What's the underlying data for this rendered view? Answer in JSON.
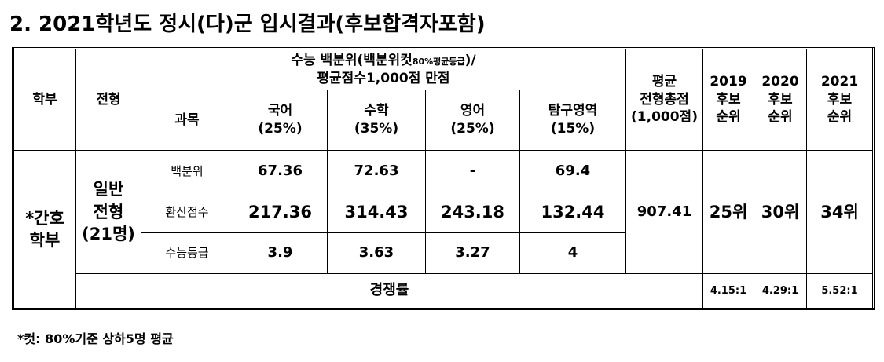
{
  "title": "2. 2021학년도 정시(다)군 입시결과(후보합격자포함)",
  "table": {
    "header": {
      "dept": "학부",
      "track": "전형",
      "group": [
        "수능 백분위(백분위컷",
        "80%평균등급",
        ")/"
      ],
      "group_line2": "평균점수1,000점 만점",
      "subject": "과목",
      "subjects": [
        [
          "국어",
          "(25%)"
        ],
        [
          "수학",
          "(35%)"
        ],
        [
          "영어",
          "(25%)"
        ],
        [
          "탐구영역",
          "(15%)"
        ]
      ],
      "average": [
        "평균",
        "전형총점",
        "(1,000점)"
      ],
      "years": [
        [
          "2019",
          "후보",
          "순위"
        ],
        [
          "2020",
          "후보",
          "순위"
        ],
        [
          "2021",
          "후보",
          "순위"
        ]
      ]
    },
    "dept": [
      "*간호",
      "학부"
    ],
    "track": [
      "일반",
      "전형",
      "(21명)"
    ],
    "rows": [
      {
        "label": "백분위",
        "values": [
          "67.36",
          "72.63",
          "-",
          "69.4"
        ]
      },
      {
        "label": "환산점수",
        "values": [
          "217.36",
          "314.43",
          "243.18",
          "132.44"
        ]
      },
      {
        "label": "수능등급",
        "values": [
          "3.9",
          "3.63",
          "3.27",
          "4"
        ]
      }
    ],
    "average_total": "907.41",
    "ranks": [
      "25위",
      "30위",
      "34위"
    ],
    "competition_label": "경쟁률",
    "competition": [
      "4.15:1",
      "4.29:1",
      "5.52:1"
    ]
  },
  "footnote": "*컷: 80%기준 상하5명 평균"
}
